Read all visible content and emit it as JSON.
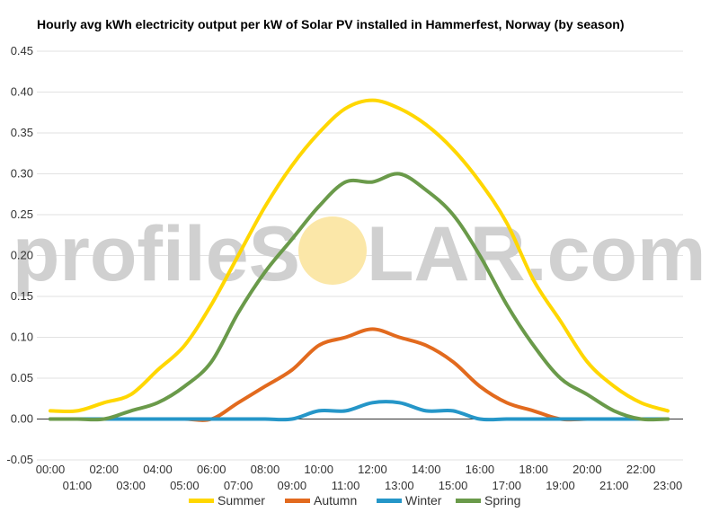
{
  "title": "Hourly avg kWh electricity output per kW of Solar PV installed in Hammerfest, Norway (by season)",
  "watermark": {
    "left": "profileS",
    "right": "LAR.com",
    "sun_color": "#fbe7a8"
  },
  "chart_data": {
    "type": "line",
    "title": "Hourly avg kWh electricity output per kW of Solar PV installed in Hammerfest, Norway (by season)",
    "xlabel": "",
    "ylabel": "",
    "ylim": [
      -0.05,
      0.45
    ],
    "yticks": [
      -0.05,
      0.0,
      0.05,
      0.1,
      0.15,
      0.2,
      0.25,
      0.3,
      0.35,
      0.4,
      0.45
    ],
    "ytick_labels": [
      "-0.05",
      "0.00",
      "0.05",
      "0.10",
      "0.15",
      "0.20",
      "0.25",
      "0.30",
      "0.35",
      "0.40",
      "0.45"
    ],
    "categories": [
      "00:00",
      "01:00",
      "02:00",
      "03:00",
      "04:00",
      "05:00",
      "06:00",
      "07:00",
      "08:00",
      "09:00",
      "10:00",
      "11:00",
      "12:00",
      "13:00",
      "14:00",
      "15:00",
      "16:00",
      "17:00",
      "18:00",
      "19:00",
      "20:00",
      "21:00",
      "22:00",
      "23:00"
    ],
    "grid": true,
    "legend_position": "bottom",
    "series": [
      {
        "name": "Summer",
        "color": "#ffd700",
        "values": [
          0.01,
          0.01,
          0.02,
          0.03,
          0.06,
          0.09,
          0.14,
          0.2,
          0.26,
          0.31,
          0.35,
          0.38,
          0.39,
          0.38,
          0.36,
          0.33,
          0.29,
          0.24,
          0.17,
          0.12,
          0.07,
          0.04,
          0.02,
          0.01
        ]
      },
      {
        "name": "Autumn",
        "color": "#e26a1e",
        "values": [
          0.0,
          0.0,
          0.0,
          0.0,
          0.0,
          0.0,
          0.0,
          0.02,
          0.04,
          0.06,
          0.09,
          0.1,
          0.11,
          0.1,
          0.09,
          0.07,
          0.04,
          0.02,
          0.01,
          0.0,
          0.0,
          0.0,
          0.0,
          0.0
        ]
      },
      {
        "name": "Winter",
        "color": "#2596c8",
        "values": [
          0.0,
          0.0,
          0.0,
          0.0,
          0.0,
          0.0,
          0.0,
          0.0,
          0.0,
          0.0,
          0.01,
          0.01,
          0.02,
          0.02,
          0.01,
          0.01,
          0.0,
          0.0,
          0.0,
          0.0,
          0.0,
          0.0,
          0.0,
          0.0
        ]
      },
      {
        "name": "Spring",
        "color": "#6a9a4a",
        "values": [
          0.0,
          0.0,
          0.0,
          0.01,
          0.02,
          0.04,
          0.07,
          0.13,
          0.18,
          0.22,
          0.26,
          0.29,
          0.29,
          0.3,
          0.28,
          0.25,
          0.2,
          0.14,
          0.09,
          0.05,
          0.03,
          0.01,
          0.0,
          0.0
        ]
      }
    ]
  }
}
